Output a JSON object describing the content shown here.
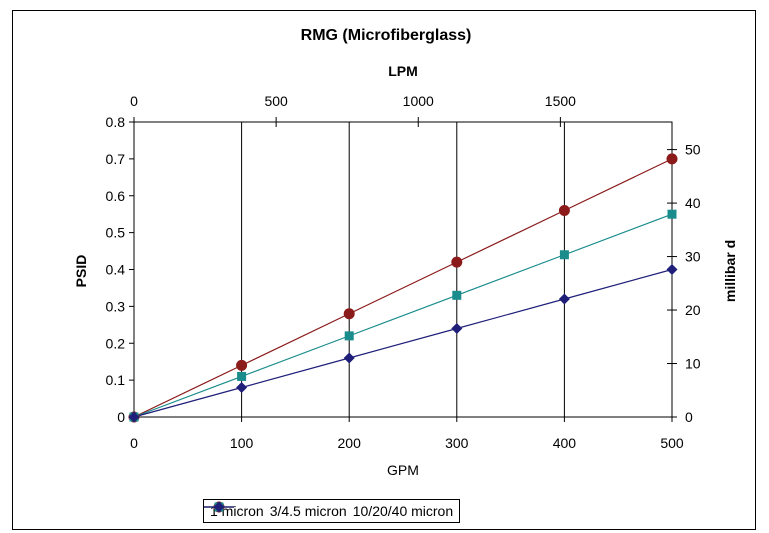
{
  "chart_data": {
    "type": "line",
    "title": "RMG (Microfiberglass)",
    "xlabel": "GPM",
    "ylabel": "PSID",
    "x2label": "LPM",
    "y2label": "millibar d",
    "x": [
      0,
      100,
      200,
      300,
      400,
      500
    ],
    "xlim": [
      0,
      500
    ],
    "ylim": [
      0,
      0.8
    ],
    "x2lim": [
      0,
      1892.7
    ],
    "y2lim": [
      0,
      55.16
    ],
    "xticks": [
      "0",
      "100",
      "200",
      "300",
      "400",
      "500"
    ],
    "yticks": [
      "0",
      "0.1",
      "0.2",
      "0.3",
      "0.4",
      "0.5",
      "0.6",
      "0.7",
      "0.8"
    ],
    "x2ticks": [
      "0",
      "500",
      "1000",
      "1500"
    ],
    "y2ticks": [
      "0",
      "10",
      "20",
      "30",
      "40",
      "50"
    ],
    "grid": "vertical",
    "legend_position": "bottom",
    "series": [
      {
        "name": "1 micron",
        "values": [
          0,
          0.14,
          0.28,
          0.42,
          0.56,
          0.7
        ],
        "color": "#8B1A1A",
        "marker": "circle"
      },
      {
        "name": "3/4.5 micron",
        "values": [
          0,
          0.11,
          0.22,
          0.33,
          0.44,
          0.55
        ],
        "color": "#1A8C8C",
        "marker": "square"
      },
      {
        "name": "10/20/40 micron",
        "values": [
          0,
          0.08,
          0.16,
          0.24,
          0.32,
          0.4
        ],
        "color": "#1F1F7A",
        "marker": "diamond"
      }
    ]
  }
}
